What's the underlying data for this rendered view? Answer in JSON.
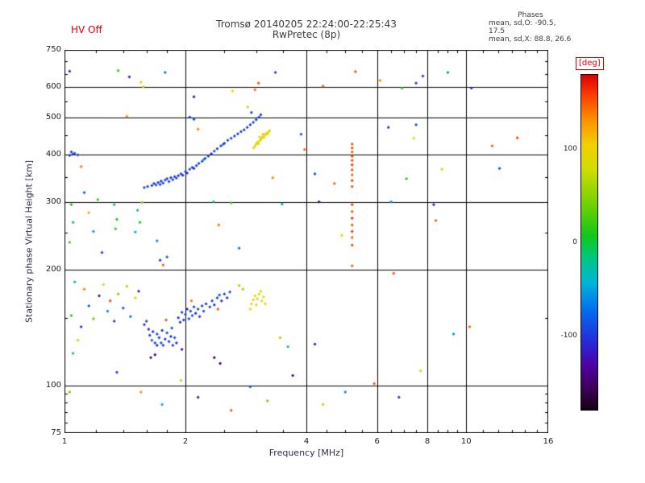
{
  "header": {
    "hv_status": "HV Off",
    "title": "Tromsø 20140205 22:24:00-22:25:43",
    "subtitle": "RwPretec (8p)",
    "phases": {
      "heading": "Phases",
      "line_o": "mean, sd,O: -90.5, 17.5",
      "line_x": "mean, sd,X:  88.8, 26.6"
    }
  },
  "colors": {
    "accent_red": "#e00000",
    "axis_text": "#1c1c1c",
    "frame": "#000000"
  },
  "chart_data": {
    "type": "scatter",
    "title": "Tromsø 20140205 22:24:00-22:25:43",
    "subtitle": "RwPretec (8p)",
    "xlabel": "Frequency [MHz]",
    "ylabel": "Stationary phase Virtual Height [km]",
    "xscale": "log",
    "yscale": "log",
    "xlim": [
      1,
      16
    ],
    "ylim": [
      75,
      750
    ],
    "grid": true,
    "x_tick_labels": [
      1,
      2,
      4,
      6,
      8,
      10,
      16
    ],
    "y_tick_labels": [
      750,
      600,
      500,
      400,
      300,
      200,
      100,
      75
    ],
    "x_gridlines": [
      2,
      4,
      6,
      8,
      10
    ],
    "y_gridlines": [
      100,
      200,
      300,
      400,
      500,
      600
    ],
    "x_minor_ticks": [
      1.2,
      1.4,
      1.6,
      1.8,
      2.5,
      3,
      3.5,
      4.5,
      5,
      5.5,
      6.5,
      7,
      7.5,
      8.5,
      9,
      9.5,
      11,
      12,
      13,
      14,
      15
    ],
    "y_minor_ticks": [
      80,
      85,
      90,
      95,
      150,
      250,
      350,
      450,
      550,
      650,
      700
    ],
    "colorbar": {
      "label": "[deg]",
      "units": "deg",
      "min": -180,
      "max": 180,
      "ticks": [
        100,
        0,
        -100
      ],
      "stops": [
        [
          0.0,
          "#140014"
        ],
        [
          0.06,
          "#3c0050"
        ],
        [
          0.13,
          "#5000a0"
        ],
        [
          0.2,
          "#2828d8"
        ],
        [
          0.3,
          "#0070f0"
        ],
        [
          0.38,
          "#00b4d8"
        ],
        [
          0.46,
          "#00c878"
        ],
        [
          0.52,
          "#10c818"
        ],
        [
          0.62,
          "#78d200"
        ],
        [
          0.72,
          "#d2dc00"
        ],
        [
          0.79,
          "#f0d200"
        ],
        [
          0.87,
          "#ff8c00"
        ],
        [
          0.94,
          "#ff3c00"
        ],
        [
          1.0,
          "#dc0000"
        ]
      ]
    },
    "points_format": [
      "frequency_mhz",
      "virtual_height_km",
      "phase_deg"
    ],
    "points": [
      [
        1.58,
        328,
        -90
      ],
      [
        1.61,
        330,
        -100
      ],
      [
        1.65,
        332,
        -95
      ],
      [
        1.67,
        336,
        -105
      ],
      [
        1.69,
        333,
        -88
      ],
      [
        1.71,
        338,
        -100
      ],
      [
        1.73,
        334,
        -92
      ],
      [
        1.74,
        341,
        -110
      ],
      [
        1.76,
        337,
        -96
      ],
      [
        1.78,
        343,
        -85
      ],
      [
        1.8,
        346,
        -102
      ],
      [
        1.82,
        340,
        -94
      ],
      [
        1.84,
        348,
        -108
      ],
      [
        1.86,
        344,
        -90
      ],
      [
        1.88,
        350,
        -98
      ],
      [
        1.9,
        347,
        -86
      ],
      [
        1.92,
        352,
        -104
      ],
      [
        1.95,
        356,
        -95
      ],
      [
        1.97,
        353,
        -112
      ],
      [
        2.0,
        361,
        -92
      ],
      [
        2.02,
        358,
        -100
      ],
      [
        2.05,
        366,
        -88
      ],
      [
        2.08,
        370,
        -97
      ],
      [
        2.1,
        368,
        -106
      ],
      [
        2.13,
        374,
        -93
      ],
      [
        2.16,
        379,
        -101
      ],
      [
        2.2,
        384,
        -89
      ],
      [
        2.22,
        388,
        -55
      ],
      [
        2.24,
        391,
        -99
      ],
      [
        2.28,
        396,
        -94
      ],
      [
        2.32,
        402,
        -107
      ],
      [
        2.36,
        408,
        -91
      ],
      [
        2.4,
        414,
        -99
      ],
      [
        2.45,
        421,
        -96
      ],
      [
        2.48,
        425,
        -60
      ],
      [
        2.5,
        428,
        -104
      ],
      [
        2.55,
        436,
        -90
      ],
      [
        2.6,
        441,
        -98
      ],
      [
        2.65,
        447,
        -95
      ],
      [
        2.7,
        453,
        -102
      ],
      [
        2.75,
        459,
        -93
      ],
      [
        2.8,
        464,
        -100
      ],
      [
        2.85,
        471,
        -97
      ],
      [
        2.9,
        478,
        -105
      ],
      [
        2.92,
        515,
        -95
      ],
      [
        2.95,
        485,
        -92
      ],
      [
        3.0,
        493,
        -99
      ],
      [
        3.05,
        501,
        -96
      ],
      [
        3.08,
        508,
        -103
      ],
      [
        2.96,
        416,
        95
      ],
      [
        2.98,
        421,
        102
      ],
      [
        3.0,
        426,
        88
      ],
      [
        3.02,
        431,
        105
      ],
      [
        3.04,
        427,
        93
      ],
      [
        3.06,
        434,
        99
      ],
      [
        3.06,
        444,
        80
      ],
      [
        3.08,
        438,
        85
      ],
      [
        3.1,
        442,
        108
      ],
      [
        3.12,
        446,
        94
      ],
      [
        3.12,
        452,
        112
      ],
      [
        3.14,
        443,
        100
      ],
      [
        3.16,
        450,
        90
      ],
      [
        3.18,
        455,
        104
      ],
      [
        3.2,
        452,
        97
      ],
      [
        3.22,
        458,
        88
      ],
      [
        3.24,
        462,
        101
      ],
      [
        1.58,
        144,
        -100
      ],
      [
        1.6,
        147,
        -92
      ],
      [
        1.62,
        140,
        -108
      ],
      [
        1.63,
        135,
        -96
      ],
      [
        1.64,
        118,
        -135
      ],
      [
        1.65,
        131,
        -88
      ],
      [
        1.66,
        138,
        -104
      ],
      [
        1.68,
        120,
        -150
      ],
      [
        1.68,
        129,
        -95
      ],
      [
        1.7,
        127,
        -112
      ],
      [
        1.7,
        136,
        -90
      ],
      [
        1.72,
        133,
        -99
      ],
      [
        1.74,
        129,
        -86
      ],
      [
        1.75,
        139,
        -106
      ],
      [
        1.76,
        127,
        -94
      ],
      [
        1.78,
        132,
        -101
      ],
      [
        1.79,
        148,
        155
      ],
      [
        1.8,
        137,
        -89
      ],
      [
        1.82,
        130,
        -97
      ],
      [
        1.84,
        134,
        -110
      ],
      [
        1.85,
        141,
        -93
      ],
      [
        1.86,
        127,
        -100
      ],
      [
        1.88,
        133,
        -87
      ],
      [
        1.9,
        129,
        -105
      ],
      [
        1.92,
        150,
        -95
      ],
      [
        1.94,
        146,
        -103
      ],
      [
        1.96,
        124,
        -128
      ],
      [
        1.96,
        155,
        -91
      ],
      [
        1.98,
        148,
        -99
      ],
      [
        2.0,
        153,
        -88
      ],
      [
        2.02,
        158,
        -107
      ],
      [
        2.04,
        149,
        -94
      ],
      [
        2.06,
        156,
        -100
      ],
      [
        2.07,
        166,
        140
      ],
      [
        2.08,
        152,
        -86
      ],
      [
        2.1,
        160,
        -98
      ],
      [
        2.12,
        154,
        -109
      ],
      [
        2.15,
        158,
        -92
      ],
      [
        2.17,
        151,
        -101
      ],
      [
        2.2,
        161,
        -96
      ],
      [
        2.22,
        156,
        -89
      ],
      [
        2.25,
        163,
        -104
      ],
      [
        2.3,
        160,
        -97
      ],
      [
        2.33,
        166,
        -91
      ],
      [
        2.36,
        118,
        -155
      ],
      [
        2.36,
        162,
        -103
      ],
      [
        2.4,
        169,
        -95
      ],
      [
        2.41,
        158,
        150
      ],
      [
        2.43,
        172,
        -88
      ],
      [
        2.44,
        114,
        -145
      ],
      [
        2.46,
        166,
        -100
      ],
      [
        2.5,
        173,
        -93
      ],
      [
        2.54,
        169,
        -106
      ],
      [
        2.58,
        175,
        -90
      ],
      [
        2.72,
        182,
        120
      ],
      [
        2.78,
        178,
        60
      ],
      [
        2.9,
        158,
        96
      ],
      [
        2.92,
        163,
        104
      ],
      [
        2.95,
        167,
        88
      ],
      [
        2.98,
        171,
        100
      ],
      [
        3.0,
        162,
        93
      ],
      [
        3.02,
        168,
        109
      ],
      [
        3.05,
        173,
        85
      ],
      [
        3.08,
        176,
        98
      ],
      [
        3.1,
        166,
        102
      ],
      [
        3.13,
        170,
        91
      ],
      [
        3.16,
        163,
        106
      ],
      [
        5.2,
        205,
        150
      ],
      [
        5.2,
        232,
        158
      ],
      [
        5.2,
        243,
        147
      ],
      [
        5.2,
        252,
        162
      ],
      [
        5.2,
        262,
        152
      ],
      [
        5.2,
        273,
        166
      ],
      [
        5.2,
        284,
        149
      ],
      [
        5.2,
        296,
        157
      ],
      [
        5.2,
        330,
        153
      ],
      [
        5.2,
        342,
        161
      ],
      [
        5.2,
        354,
        148
      ],
      [
        5.2,
        365,
        156
      ],
      [
        5.2,
        376,
        163
      ],
      [
        5.2,
        386,
        151
      ],
      [
        5.2,
        396,
        159
      ],
      [
        5.2,
        406,
        146
      ],
      [
        5.2,
        416,
        154
      ],
      [
        5.2,
        426,
        150
      ],
      [
        1.03,
        660,
        -110
      ],
      [
        1.04,
        406,
        -100
      ],
      [
        1.05,
        401,
        -95
      ],
      [
        1.03,
        398,
        -108
      ],
      [
        1.06,
        403,
        -90
      ],
      [
        1.08,
        399,
        -102
      ],
      [
        1.04,
        296,
        8
      ],
      [
        1.05,
        266,
        -18
      ],
      [
        1.03,
        236,
        28
      ],
      [
        1.06,
        186,
        -38
      ],
      [
        1.04,
        152,
        18
      ],
      [
        1.05,
        121,
        -12
      ],
      [
        1.03,
        96,
        36
      ],
      [
        1.1,
        372,
        140
      ],
      [
        1.12,
        318,
        -85
      ],
      [
        1.15,
        282,
        120
      ],
      [
        1.18,
        252,
        -55
      ],
      [
        1.21,
        305,
        15
      ],
      [
        1.24,
        222,
        -95
      ],
      [
        1.08,
        131,
        75
      ],
      [
        1.1,
        142,
        -100
      ],
      [
        1.12,
        178,
        138
      ],
      [
        1.15,
        161,
        -82
      ],
      [
        1.18,
        149,
        32
      ],
      [
        1.22,
        171,
        -118
      ],
      [
        1.25,
        183,
        92
      ],
      [
        1.28,
        156,
        -62
      ],
      [
        1.3,
        166,
        158
      ],
      [
        1.33,
        147,
        -98
      ],
      [
        1.36,
        173,
        48
      ],
      [
        1.4,
        159,
        -88
      ],
      [
        1.43,
        181,
        118
      ],
      [
        1.46,
        151,
        -72
      ],
      [
        1.5,
        169,
        98
      ],
      [
        1.53,
        176,
        -110
      ],
      [
        1.33,
        296,
        -8
      ],
      [
        1.35,
        271,
        6
      ],
      [
        1.34,
        256,
        16
      ],
      [
        1.52,
        286,
        -22
      ],
      [
        1.54,
        266,
        12
      ],
      [
        1.5,
        251,
        -32
      ],
      [
        1.56,
        300,
        40
      ],
      [
        1.7,
        238,
        -60
      ],
      [
        1.73,
        212,
        -100
      ],
      [
        1.76,
        206,
        148
      ],
      [
        1.8,
        216,
        -80
      ],
      [
        2.35,
        301,
        -5
      ],
      [
        2.42,
        262,
        142
      ],
      [
        2.6,
        299,
        20
      ],
      [
        2.72,
        228,
        -70
      ],
      [
        3.3,
        348,
        136
      ],
      [
        3.44,
        133,
        62
      ],
      [
        3.48,
        297,
        -48
      ],
      [
        3.6,
        126,
        -40
      ],
      [
        3.88,
        452,
        -90
      ],
      [
        3.96,
        412,
        145
      ],
      [
        4.2,
        128,
        -128
      ],
      [
        1.36,
        662,
        20
      ],
      [
        1.43,
        503,
        128
      ],
      [
        1.45,
        638,
        -115
      ],
      [
        1.55,
        618,
        95
      ],
      [
        1.57,
        601,
        82
      ],
      [
        1.78,
        655,
        -70
      ],
      [
        2.05,
        501,
        -94
      ],
      [
        2.1,
        494,
        -86
      ],
      [
        2.1,
        566,
        -138
      ],
      [
        2.15,
        466,
        138
      ],
      [
        2.62,
        586,
        98
      ],
      [
        2.86,
        532,
        102
      ],
      [
        2.98,
        590,
        142
      ],
      [
        3.04,
        614,
        152
      ],
      [
        3.35,
        655,
        -100
      ],
      [
        4.4,
        603,
        148
      ],
      [
        5.3,
        658,
        152
      ],
      [
        6.1,
        624,
        135
      ],
      [
        6.92,
        596,
        25
      ],
      [
        7.5,
        614,
        -95
      ],
      [
        7.8,
        641,
        -105
      ],
      [
        9.0,
        655,
        -58
      ],
      [
        10.3,
        596,
        -100
      ],
      [
        4.2,
        356,
        -92
      ],
      [
        4.3,
        301,
        -128
      ],
      [
        4.7,
        336,
        148
      ],
      [
        4.9,
        246,
        92
      ],
      [
        6.4,
        471,
        -98
      ],
      [
        6.5,
        301,
        -55
      ],
      [
        6.6,
        196,
        153
      ],
      [
        7.1,
        346,
        12
      ],
      [
        7.4,
        441,
        96
      ],
      [
        7.5,
        478,
        -88
      ],
      [
        8.3,
        296,
        -118
      ],
      [
        8.4,
        269,
        148
      ],
      [
        8.7,
        366,
        76
      ],
      [
        9.3,
        136,
        -52
      ],
      [
        10.2,
        142,
        148
      ],
      [
        11.6,
        421,
        152
      ],
      [
        12.1,
        368,
        -82
      ],
      [
        13.4,
        442,
        158
      ],
      [
        1.35,
        108,
        -92
      ],
      [
        1.55,
        96,
        128
      ],
      [
        1.75,
        89,
        -48
      ],
      [
        1.95,
        103,
        68
      ],
      [
        2.15,
        93,
        -122
      ],
      [
        2.6,
        86,
        148
      ],
      [
        2.9,
        99,
        -78
      ],
      [
        3.2,
        91,
        42
      ],
      [
        3.7,
        106,
        -138
      ],
      [
        4.4,
        89,
        112
      ],
      [
        5.0,
        96,
        -58
      ],
      [
        5.9,
        101,
        152
      ],
      [
        6.8,
        93,
        -98
      ],
      [
        7.7,
        109,
        78
      ]
    ]
  }
}
